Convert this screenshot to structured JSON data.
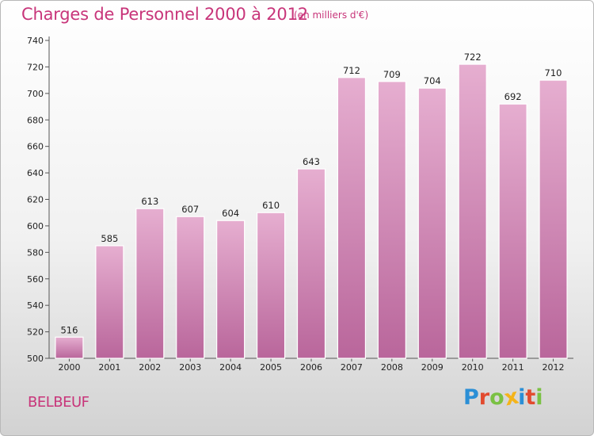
{
  "title": "Charges de Personnel 2000 à 2012",
  "subtitle": "(en milliers d'€)",
  "commune": "BELBEUF",
  "brand": {
    "letters": [
      "P",
      "r",
      "o",
      "x",
      "i",
      "t",
      "i"
    ],
    "colors": [
      "#2b8fd6",
      "#e24a2e",
      "#7ac143",
      "#f4b41a",
      "#2b8fd6",
      "#e24a2e",
      "#7ac143"
    ]
  },
  "colors": {
    "bar": "#d78fb9",
    "bar_light": "#e6aed0",
    "bar_dark": "#b9669b",
    "title": "#c8357a"
  },
  "chart_data": {
    "type": "bar",
    "categories": [
      "2000",
      "2001",
      "2002",
      "2003",
      "2004",
      "2005",
      "2006",
      "2007",
      "2008",
      "2009",
      "2010",
      "2011",
      "2012"
    ],
    "values": [
      516,
      585,
      613,
      607,
      604,
      610,
      643,
      712,
      709,
      704,
      722,
      692,
      710
    ],
    "ylim": [
      500,
      740
    ],
    "yticks": [
      500,
      520,
      540,
      560,
      580,
      600,
      620,
      640,
      660,
      680,
      700,
      720,
      740
    ],
    "grid": false,
    "title": "Charges de Personnel 2000 à 2012"
  }
}
